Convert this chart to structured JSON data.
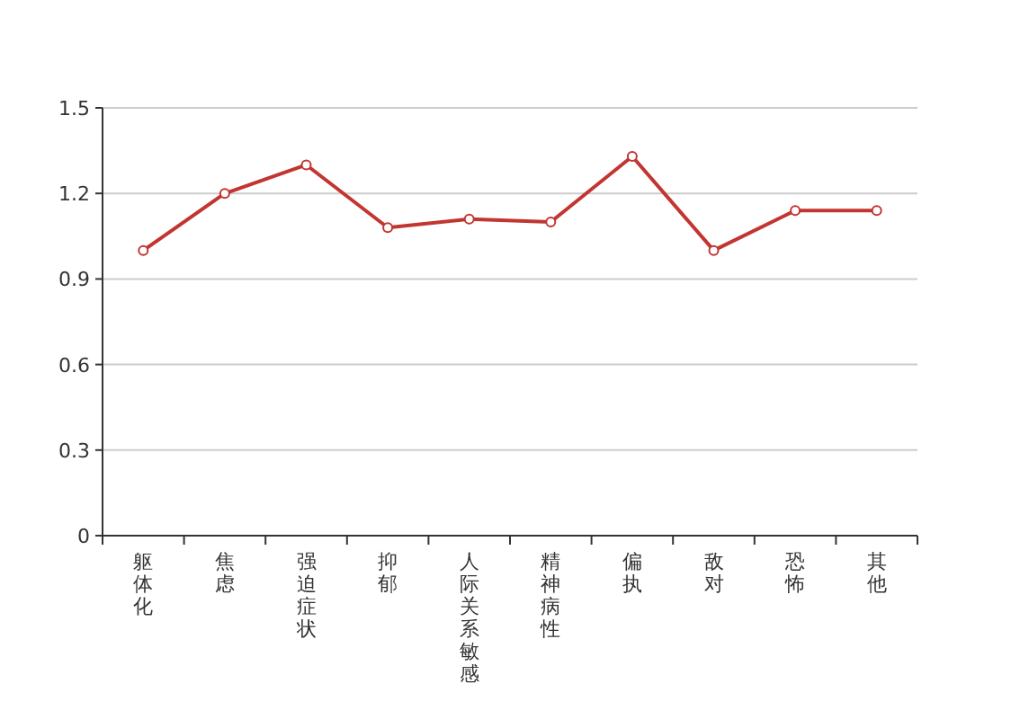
{
  "chart_data": {
    "type": "line",
    "categories": [
      "躯体化",
      "焦虑",
      "强迫症状",
      "抑郁",
      "人际关系敏感",
      "精神病性",
      "偏执",
      "敌对",
      "恐怖",
      "其他"
    ],
    "series": [
      {
        "color": "#c23531",
        "values": [
          1.0,
          1.2,
          1.3,
          1.08,
          1.11,
          1.1,
          1.33,
          1.0,
          1.14,
          1.14
        ]
      }
    ],
    "ylim": [
      0,
      1.5
    ],
    "yticks": [
      0,
      0.3,
      0.6,
      0.9,
      1.2,
      1.5
    ],
    "grid": "y",
    "marker": "circle",
    "line_style": "solid"
  }
}
